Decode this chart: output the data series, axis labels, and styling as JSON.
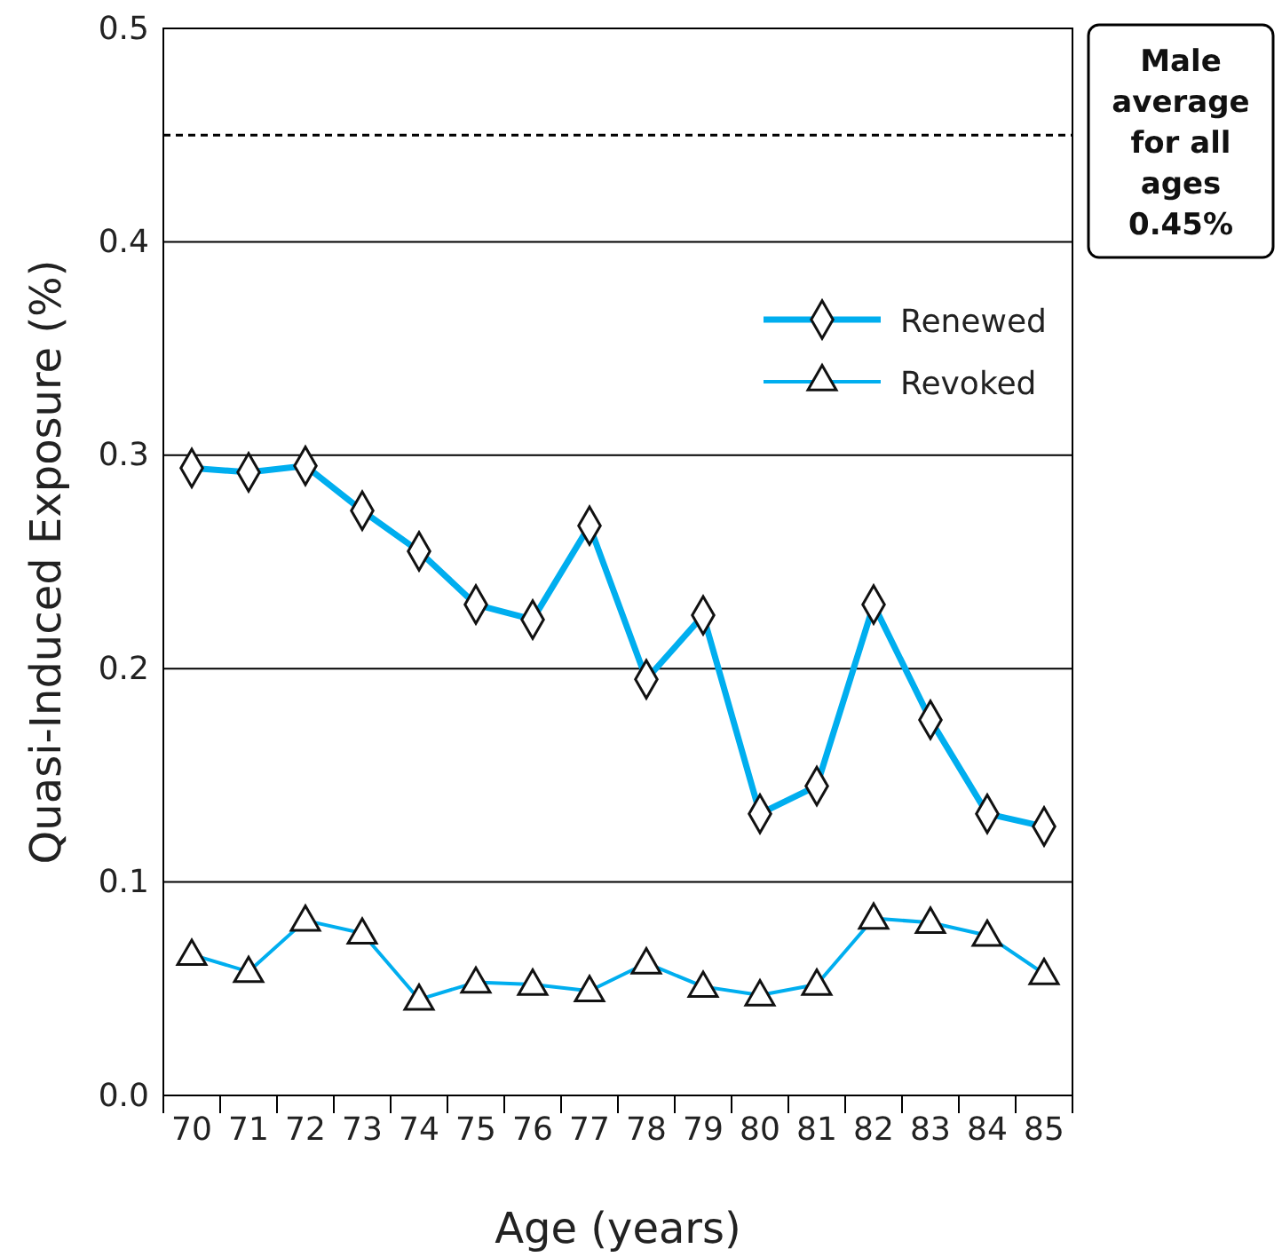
{
  "chart_data": {
    "type": "line",
    "xlabel": "Age (years)",
    "ylabel": "Quasi-Induced Exposure (%)",
    "categories": [
      "70",
      "71",
      "72",
      "73",
      "74",
      "75",
      "76",
      "77",
      "78",
      "79",
      "80",
      "81",
      "82",
      "83",
      "84",
      "85"
    ],
    "series": [
      {
        "name": "Renewed",
        "color": "#00aeef",
        "marker": "diamond",
        "values": [
          0.294,
          0.292,
          0.295,
          0.274,
          0.255,
          0.23,
          0.223,
          0.267,
          0.195,
          0.225,
          0.132,
          0.145,
          0.23,
          0.176,
          0.132,
          0.126
        ]
      },
      {
        "name": "Revoked",
        "color": "#00aeef",
        "marker": "triangle",
        "values": [
          0.066,
          0.058,
          0.082,
          0.076,
          0.045,
          0.053,
          0.052,
          0.049,
          0.062,
          0.051,
          0.047,
          0.052,
          0.083,
          0.081,
          0.075,
          0.057
        ]
      }
    ],
    "ylim": [
      0,
      0.5
    ],
    "yticks": [
      {
        "value": 0,
        "label": "0.0"
      },
      0.1,
      0.2,
      0.3,
      0.4,
      0.5
    ],
    "grid": "y",
    "legend": "top right",
    "ref_lines": [
      {
        "axis": "y",
        "value": 0.45,
        "label": "Male average for all ages 0.45%",
        "line_style": "dashed",
        "color": "#000000"
      }
    ]
  }
}
